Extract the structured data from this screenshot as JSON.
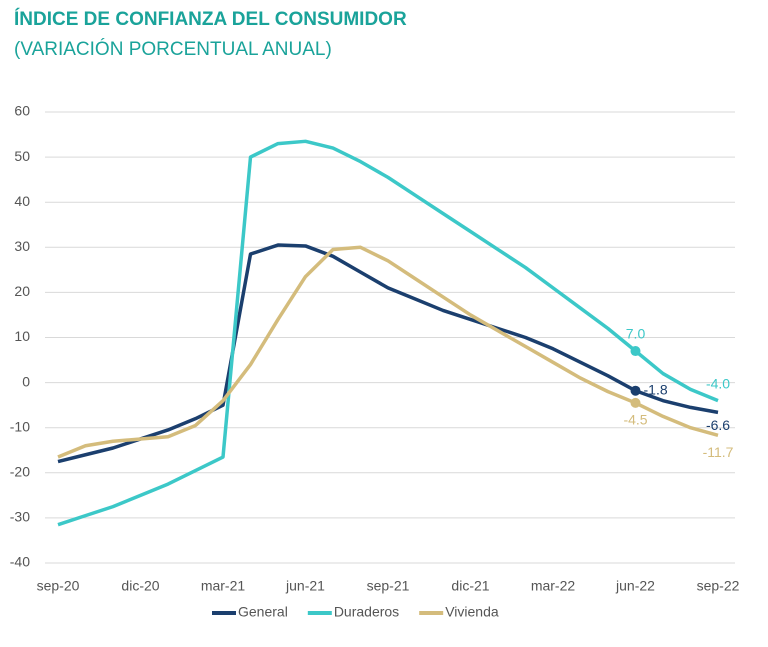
{
  "chart_data": {
    "type": "line",
    "title": "ÍNDICE DE CONFIANZA DEL CONSUMIDOR",
    "subtitle": "(VARIACIÓN PORCENTUAL ANUAL)",
    "categories": [
      "sep-20",
      null,
      null,
      "dic-20",
      null,
      null,
      "mar-21",
      null,
      null,
      "jun-21",
      null,
      null,
      "sep-21",
      null,
      null,
      "dic-21",
      null,
      null,
      "mar-22",
      null,
      null,
      "jun-22",
      null,
      null,
      "sep-22"
    ],
    "ylim": [
      -40,
      60
    ],
    "yticks": [
      60,
      50,
      40,
      30,
      20,
      10,
      0,
      -10,
      -20,
      -30,
      -40
    ],
    "grid": true,
    "legend": "bottom",
    "series": [
      {
        "name": "General",
        "color": "#1b3f6e",
        "values": [
          -17.5,
          -16,
          -14.5,
          -12.5,
          -10.5,
          -8,
          -5,
          28.5,
          30.5,
          30.3,
          28,
          24.5,
          21,
          18.5,
          16,
          14,
          12,
          10,
          7.5,
          4.5,
          1.5,
          -1.8,
          -4,
          -5.5,
          -6.6
        ],
        "value_labels": [
          null,
          null,
          null,
          null,
          null,
          null,
          null,
          null,
          null,
          null,
          null,
          null,
          null,
          null,
          null,
          null,
          null,
          null,
          null,
          null,
          null,
          "-1.8",
          null,
          null,
          "-6.6"
        ]
      },
      {
        "name": "Duraderos",
        "color": "#3cc8c8",
        "values": [
          -31.5,
          -29.5,
          -27.5,
          -25,
          -22.5,
          -19.5,
          -16.5,
          50,
          53,
          53.5,
          52,
          49,
          45.5,
          41.5,
          37.5,
          33.5,
          29.5,
          25.5,
          21,
          16.5,
          12,
          7,
          2,
          -1.5,
          -4
        ],
        "value_labels": [
          null,
          null,
          null,
          null,
          null,
          null,
          null,
          null,
          null,
          null,
          null,
          null,
          null,
          null,
          null,
          null,
          null,
          null,
          null,
          null,
          null,
          "7.0",
          null,
          null,
          "-4.0"
        ]
      },
      {
        "name": "Vivienda",
        "color": "#d4bc7c",
        "values": [
          -16.5,
          -14,
          -13,
          -12.5,
          -12,
          -9.5,
          -4,
          4,
          14,
          23.5,
          29.5,
          30,
          27,
          23,
          19,
          15,
          11.5,
          8,
          4.5,
          1,
          -2,
          -4.5,
          -7.5,
          -10,
          -11.7
        ],
        "value_labels": [
          null,
          null,
          null,
          null,
          null,
          null,
          null,
          null,
          null,
          null,
          null,
          null,
          null,
          null,
          null,
          null,
          null,
          null,
          null,
          null,
          null,
          "-4.5",
          null,
          null,
          "-11.7"
        ]
      }
    ]
  }
}
